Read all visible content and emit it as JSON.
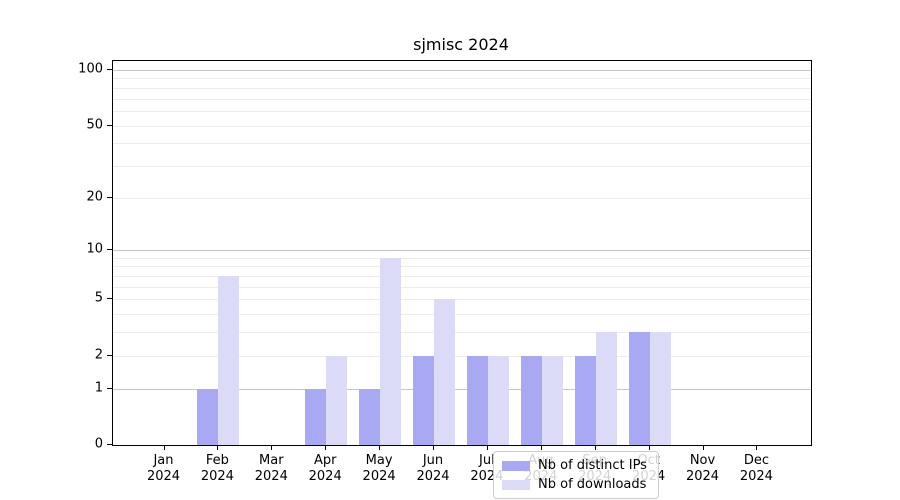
{
  "title": "sjmisc 2024",
  "colors": {
    "ips_bar": "#a9a9f3",
    "downloads_bar": "#dbdbf8",
    "grid_major": "#c6c6c6",
    "grid_minor": "#ededed",
    "spine": "#000000"
  },
  "legend": {
    "items": [
      {
        "label": "Nb of distinct IPs",
        "color_key": "ips_bar"
      },
      {
        "label": "Nb of downloads",
        "color_key": "downloads_bar"
      }
    ]
  },
  "y_axis": {
    "tick_values": [
      0,
      1,
      2,
      5,
      10,
      20,
      50,
      100
    ],
    "gridline_minor_values": [
      2,
      3,
      4,
      5,
      6,
      7,
      8,
      9,
      20,
      30,
      40,
      50,
      60,
      70,
      80,
      90
    ],
    "gridline_major_values": [
      1,
      10,
      100
    ]
  },
  "x_axis": {
    "year": "2024",
    "months": [
      "Jan",
      "Feb",
      "Mar",
      "Apr",
      "May",
      "Jun",
      "Jul",
      "Aug",
      "Sep",
      "Oct",
      "Nov",
      "Dec"
    ]
  },
  "chart_data": {
    "type": "bar",
    "title": "sjmisc 2024",
    "categories": [
      "Jan 2024",
      "Feb 2024",
      "Mar 2024",
      "Apr 2024",
      "May 2024",
      "Jun 2024",
      "Jul 2024",
      "Aug 2024",
      "Sep 2024",
      "Oct 2024",
      "Nov 2024",
      "Dec 2024"
    ],
    "series": [
      {
        "name": "Nb of distinct IPs",
        "values": [
          0,
          1,
          0,
          1,
          1,
          2,
          2,
          2,
          2,
          3,
          0,
          0
        ]
      },
      {
        "name": "Nb of downloads",
        "values": [
          0,
          7,
          0,
          2,
          9,
          5,
          2,
          2,
          3,
          3,
          0,
          0
        ]
      }
    ],
    "xlabel": "",
    "ylabel": "",
    "yscale": "log10(1+y)",
    "y_ticks": [
      0,
      1,
      2,
      5,
      10,
      20,
      50,
      100
    ],
    "ylim": [
      0,
      112
    ],
    "grid": true,
    "legend_position": "lower center-right inside plot"
  }
}
